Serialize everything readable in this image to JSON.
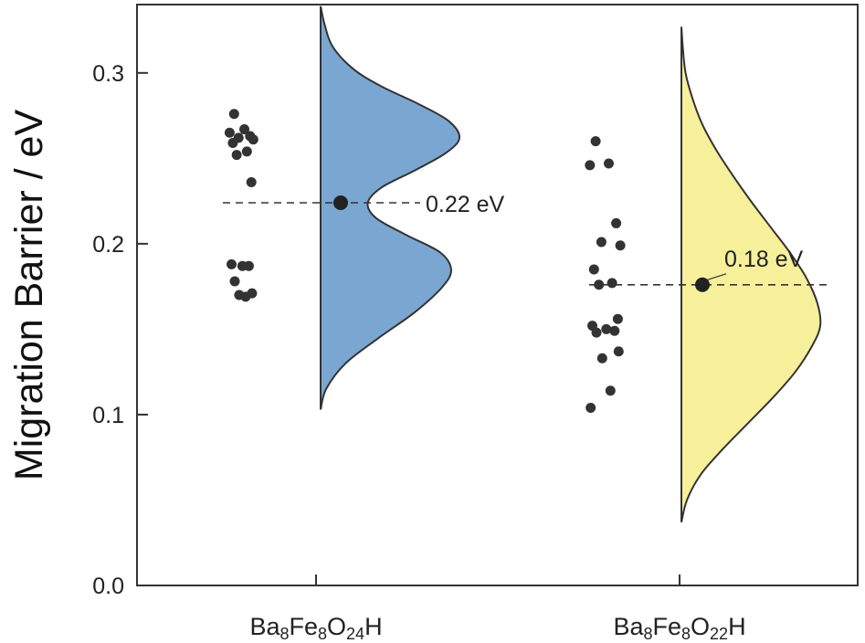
{
  "chart_data": {
    "type": "violin",
    "ylabel": "Migration Barrier / eV",
    "ylim": [
      0.0,
      0.34
    ],
    "yticks": [
      0.0,
      0.1,
      0.2,
      0.3
    ],
    "ytick_labels": [
      "0.0",
      "0.1",
      "0.2",
      "0.3"
    ],
    "grid": false,
    "series": [
      {
        "category": "Ba8Fe8O24H",
        "label_parts": [
          [
            "Ba",
            ""
          ],
          [
            "8",
            "sub"
          ],
          [
            "Fe",
            ""
          ],
          [
            "8",
            "sub"
          ],
          [
            "O",
            ""
          ],
          [
            "24",
            "sub"
          ],
          [
            "H",
            ""
          ]
        ],
        "fill": "#7aa7d2",
        "mean": 0.224,
        "mean_label": "0.22 eV",
        "range": [
          0.103,
          0.339
        ],
        "density_profile": [
          [
            0.103,
            0.0
          ],
          [
            0.115,
            0.04
          ],
          [
            0.13,
            0.18
          ],
          [
            0.145,
            0.42
          ],
          [
            0.16,
            0.68
          ],
          [
            0.175,
            0.88
          ],
          [
            0.185,
            0.94
          ],
          [
            0.195,
            0.86
          ],
          [
            0.205,
            0.62
          ],
          [
            0.215,
            0.4
          ],
          [
            0.224,
            0.34
          ],
          [
            0.233,
            0.44
          ],
          [
            0.243,
            0.68
          ],
          [
            0.253,
            0.9
          ],
          [
            0.262,
            1.0
          ],
          [
            0.272,
            0.92
          ],
          [
            0.282,
            0.7
          ],
          [
            0.292,
            0.44
          ],
          [
            0.302,
            0.24
          ],
          [
            0.315,
            0.09
          ],
          [
            0.328,
            0.03
          ],
          [
            0.339,
            0.0
          ]
        ],
        "points": [
          0.276,
          0.267,
          0.265,
          0.263,
          0.262,
          0.261,
          0.259,
          0.254,
          0.252,
          0.236,
          0.188,
          0.187,
          0.187,
          0.178,
          0.171,
          0.17,
          0.169
        ]
      },
      {
        "category": "Ba8Fe8O22H",
        "label_parts": [
          [
            "Ba",
            ""
          ],
          [
            "8",
            "sub"
          ],
          [
            "Fe",
            ""
          ],
          [
            "8",
            "sub"
          ],
          [
            "O",
            ""
          ],
          [
            "22",
            "sub"
          ],
          [
            "H",
            ""
          ]
        ],
        "fill": "#f7f09a",
        "mean": 0.176,
        "mean_label": "0.18 eV",
        "range": [
          0.037,
          0.327
        ],
        "density_profile": [
          [
            0.037,
            0.0
          ],
          [
            0.05,
            0.04
          ],
          [
            0.065,
            0.14
          ],
          [
            0.08,
            0.3
          ],
          [
            0.095,
            0.48
          ],
          [
            0.11,
            0.66
          ],
          [
            0.125,
            0.82
          ],
          [
            0.14,
            0.94
          ],
          [
            0.152,
            1.0
          ],
          [
            0.165,
            0.98
          ],
          [
            0.18,
            0.9
          ],
          [
            0.195,
            0.78
          ],
          [
            0.21,
            0.64
          ],
          [
            0.225,
            0.5
          ],
          [
            0.24,
            0.37
          ],
          [
            0.255,
            0.25
          ],
          [
            0.27,
            0.15
          ],
          [
            0.285,
            0.08
          ],
          [
            0.3,
            0.03
          ],
          [
            0.315,
            0.01
          ],
          [
            0.327,
            0.0
          ]
        ],
        "points": [
          0.26,
          0.247,
          0.246,
          0.212,
          0.201,
          0.199,
          0.185,
          0.177,
          0.176,
          0.156,
          0.152,
          0.15,
          0.149,
          0.148,
          0.137,
          0.133,
          0.114,
          0.104
        ]
      }
    ]
  }
}
